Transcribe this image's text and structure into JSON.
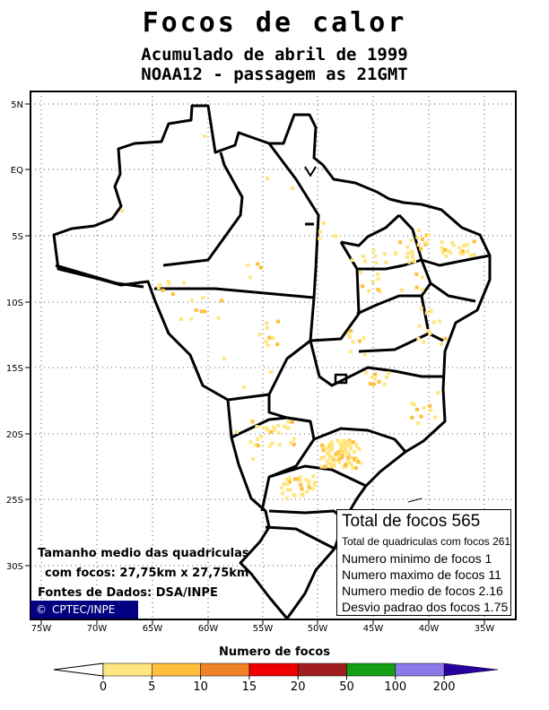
{
  "title": "Focos de calor",
  "subtitle": "Acumulado de abril de 1999",
  "satellite": "NOAA12 - passagem as 21GMT",
  "lat_labels": [
    "5N",
    "EQ",
    "5S",
    "10S",
    "15S",
    "20S",
    "25S",
    "30S"
  ],
  "lon_labels": [
    "75W",
    "70W",
    "65W",
    "60W",
    "55W",
    "50W",
    "45W",
    "40W",
    "35W"
  ],
  "grid_size_line1": "Tamanho medio das quadriculas",
  "grid_size_line2": "com focos: 27,75km x 27,75km",
  "data_source": "Fontes de Dados: DSA/INPE",
  "copyright": "CPTEC/INPE",
  "copyright_symbol": "©",
  "stats": {
    "total": "Total de focos 565",
    "cells": "Total de quadriculas com focos 261",
    "min": "Numero minimo de focos 1",
    "max": "Numero maximo de focos 11",
    "mean": "Numero medio de focos 2.16",
    "std": "Desvio padrao dos focos 1.75"
  },
  "legend": {
    "title": "Numero de focos",
    "ticks": [
      "0",
      "5",
      "10",
      "15",
      "20",
      "50",
      "100",
      "200"
    ],
    "colors": [
      "#ffe680",
      "#ffbe3c",
      "#f08228",
      "#f00000",
      "#a01e1e",
      "#14a014",
      "#8c78e6",
      "#2800a0"
    ]
  }
}
